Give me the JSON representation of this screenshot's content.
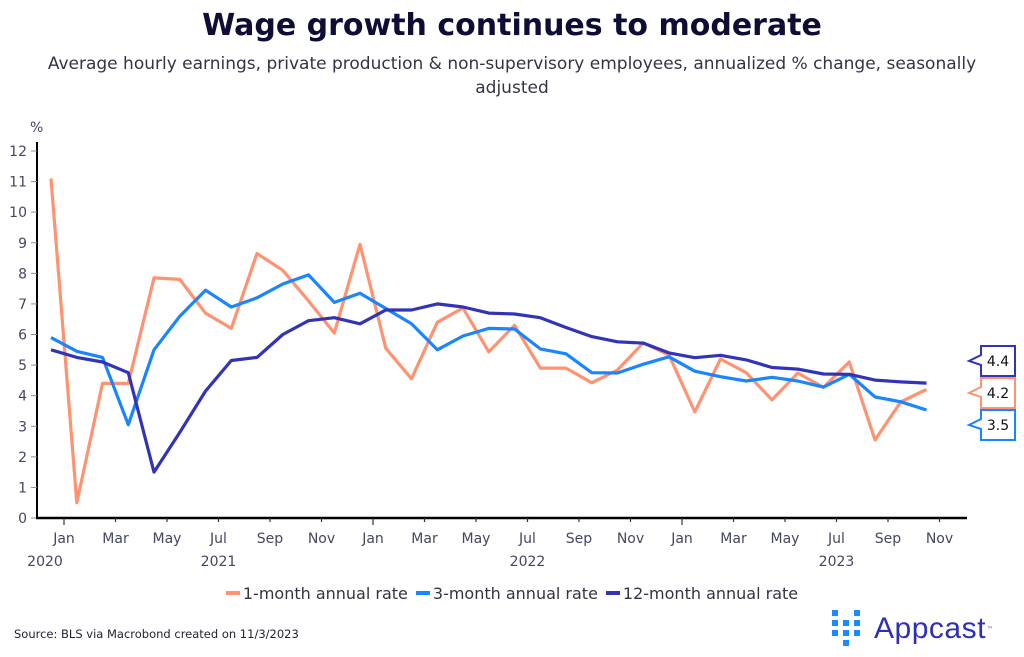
{
  "title": "Wage growth continues to moderate",
  "subtitle": "Average hourly earnings, private production & non-supervisory employees, annualized % change, seasonally adjusted",
  "source": "Source: BLS via Macrobond created on 11/3/2023",
  "logo": {
    "text": "Appcast",
    "tm": "™",
    "grid_color": "#1a8cff",
    "text_color": "#2e2eb8"
  },
  "chart_data": {
    "type": "line",
    "title": "Wage growth continues to moderate",
    "ylabel": "%",
    "xlabel": "",
    "ylim": [
      0,
      12
    ],
    "yticks": [
      0,
      1,
      2,
      3,
      4,
      5,
      6,
      7,
      8,
      9,
      10,
      11,
      12
    ],
    "grid": false,
    "legend_position": "bottom",
    "x": [
      "Dec 2020",
      "Jan 2021",
      "Feb 2021",
      "Mar 2021",
      "Apr 2021",
      "May 2021",
      "Jun 2021",
      "Jul 2021",
      "Aug 2021",
      "Sep 2021",
      "Oct 2021",
      "Nov 2021",
      "Dec 2021",
      "Jan 2022",
      "Feb 2022",
      "Mar 2022",
      "Apr 2022",
      "May 2022",
      "Jun 2022",
      "Jul 2022",
      "Aug 2022",
      "Sep 2022",
      "Oct 2022",
      "Nov 2022",
      "Dec 2022",
      "Jan 2023",
      "Feb 2023",
      "Mar 2023",
      "Apr 2023",
      "May 2023",
      "Jun 2023",
      "Jul 2023",
      "Aug 2023",
      "Sep 2023",
      "Oct 2023"
    ],
    "xtick_labels": [
      {
        "label": "Jan",
        "year": "2020"
      },
      {
        "label": "Mar",
        "year": ""
      },
      {
        "label": "May",
        "year": ""
      },
      {
        "label": "Jul",
        "year": "2021"
      },
      {
        "label": "Sep",
        "year": ""
      },
      {
        "label": "Nov",
        "year": ""
      },
      {
        "label": "Jan",
        "year": ""
      },
      {
        "label": "Mar",
        "year": ""
      },
      {
        "label": "May",
        "year": ""
      },
      {
        "label": "Jul",
        "year": "2022"
      },
      {
        "label": "Sep",
        "year": ""
      },
      {
        "label": "Nov",
        "year": ""
      },
      {
        "label": "Jan",
        "year": ""
      },
      {
        "label": "Mar",
        "year": ""
      },
      {
        "label": "May",
        "year": ""
      },
      {
        "label": "Jul",
        "year": "2023"
      },
      {
        "label": "Sep",
        "year": ""
      },
      {
        "label": "Nov",
        "year": ""
      }
    ],
    "series": [
      {
        "name": "1-month annual rate",
        "color": "#ff9270",
        "end_label": "4.2",
        "values": [
          11.1,
          0.5,
          4.4,
          4.4,
          7.85,
          7.8,
          6.7,
          6.2,
          8.65,
          8.1,
          7.1,
          6.05,
          8.95,
          5.55,
          4.55,
          6.4,
          6.87,
          5.43,
          6.3,
          4.9,
          4.9,
          4.42,
          4.84,
          5.73,
          5.33,
          3.47,
          5.2,
          4.75,
          3.86,
          4.74,
          4.27,
          5.1,
          2.55,
          3.8,
          4.2
        ]
      },
      {
        "name": "3-month annual rate",
        "color": "#1a85ff",
        "end_label": "3.5",
        "values": [
          5.9,
          5.45,
          5.25,
          3.05,
          5.5,
          6.6,
          7.45,
          6.9,
          7.2,
          7.65,
          7.95,
          7.05,
          7.35,
          6.85,
          6.35,
          5.5,
          5.95,
          6.2,
          6.18,
          5.53,
          5.37,
          4.75,
          4.74,
          5.03,
          5.27,
          4.8,
          4.62,
          4.48,
          4.6,
          4.48,
          4.28,
          4.7,
          3.96,
          3.8,
          3.53
        ]
      },
      {
        "name": "12-month annual rate",
        "color": "#3333b8",
        "end_label": "4.4",
        "values": [
          5.5,
          5.25,
          5.1,
          4.75,
          1.5,
          2.8,
          4.15,
          5.15,
          5.25,
          6.0,
          6.45,
          6.55,
          6.35,
          6.8,
          6.8,
          7.0,
          6.9,
          6.7,
          6.67,
          6.55,
          6.23,
          5.93,
          5.76,
          5.72,
          5.4,
          5.24,
          5.32,
          5.17,
          4.92,
          4.87,
          4.71,
          4.7,
          4.51,
          4.45,
          4.41
        ]
      }
    ]
  }
}
